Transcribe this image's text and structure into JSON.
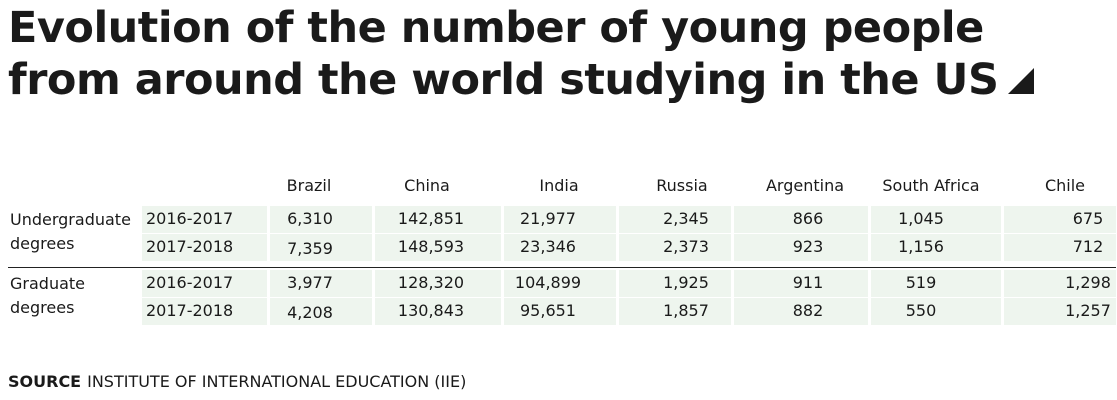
{
  "title": "Evolution of the number of young people from around the world studying in the US",
  "source": {
    "label": "SOURCE",
    "text": "INSTITUTE OF INTERNATIONAL EDUCATION (IIE)"
  },
  "chart_data": {
    "type": "table",
    "columns": [
      "Brazil",
      "China",
      "India",
      "Russia",
      "Argentina",
      "South Africa",
      "Chile"
    ],
    "groups": [
      {
        "label": "Undergraduate degrees",
        "rows": [
          {
            "year": "2016-2017",
            "values": [
              "6,310",
              "142,851",
              "21,977",
              "2,345",
              "866",
              "1,045",
              "675"
            ]
          },
          {
            "year": "2017-2018",
            "values": [
              "7,359",
              "148,593",
              "23,346",
              "2,373",
              "923",
              "1,156",
              "712"
            ]
          }
        ]
      },
      {
        "label": "Graduate degrees",
        "rows": [
          {
            "year": "2016-2017",
            "values": [
              "3,977",
              "128,320",
              "104,899",
              "1,925",
              "911",
              "519",
              "1,298"
            ]
          },
          {
            "year": "2017-2018",
            "values": [
              "4,208",
              "130,843",
              "95,651",
              "1,857",
              "882",
              "550",
              "1,257"
            ]
          }
        ]
      }
    ],
    "colors": {
      "band": "#eef5ee",
      "text": "#1a1a1a",
      "divider": "#222222"
    }
  }
}
